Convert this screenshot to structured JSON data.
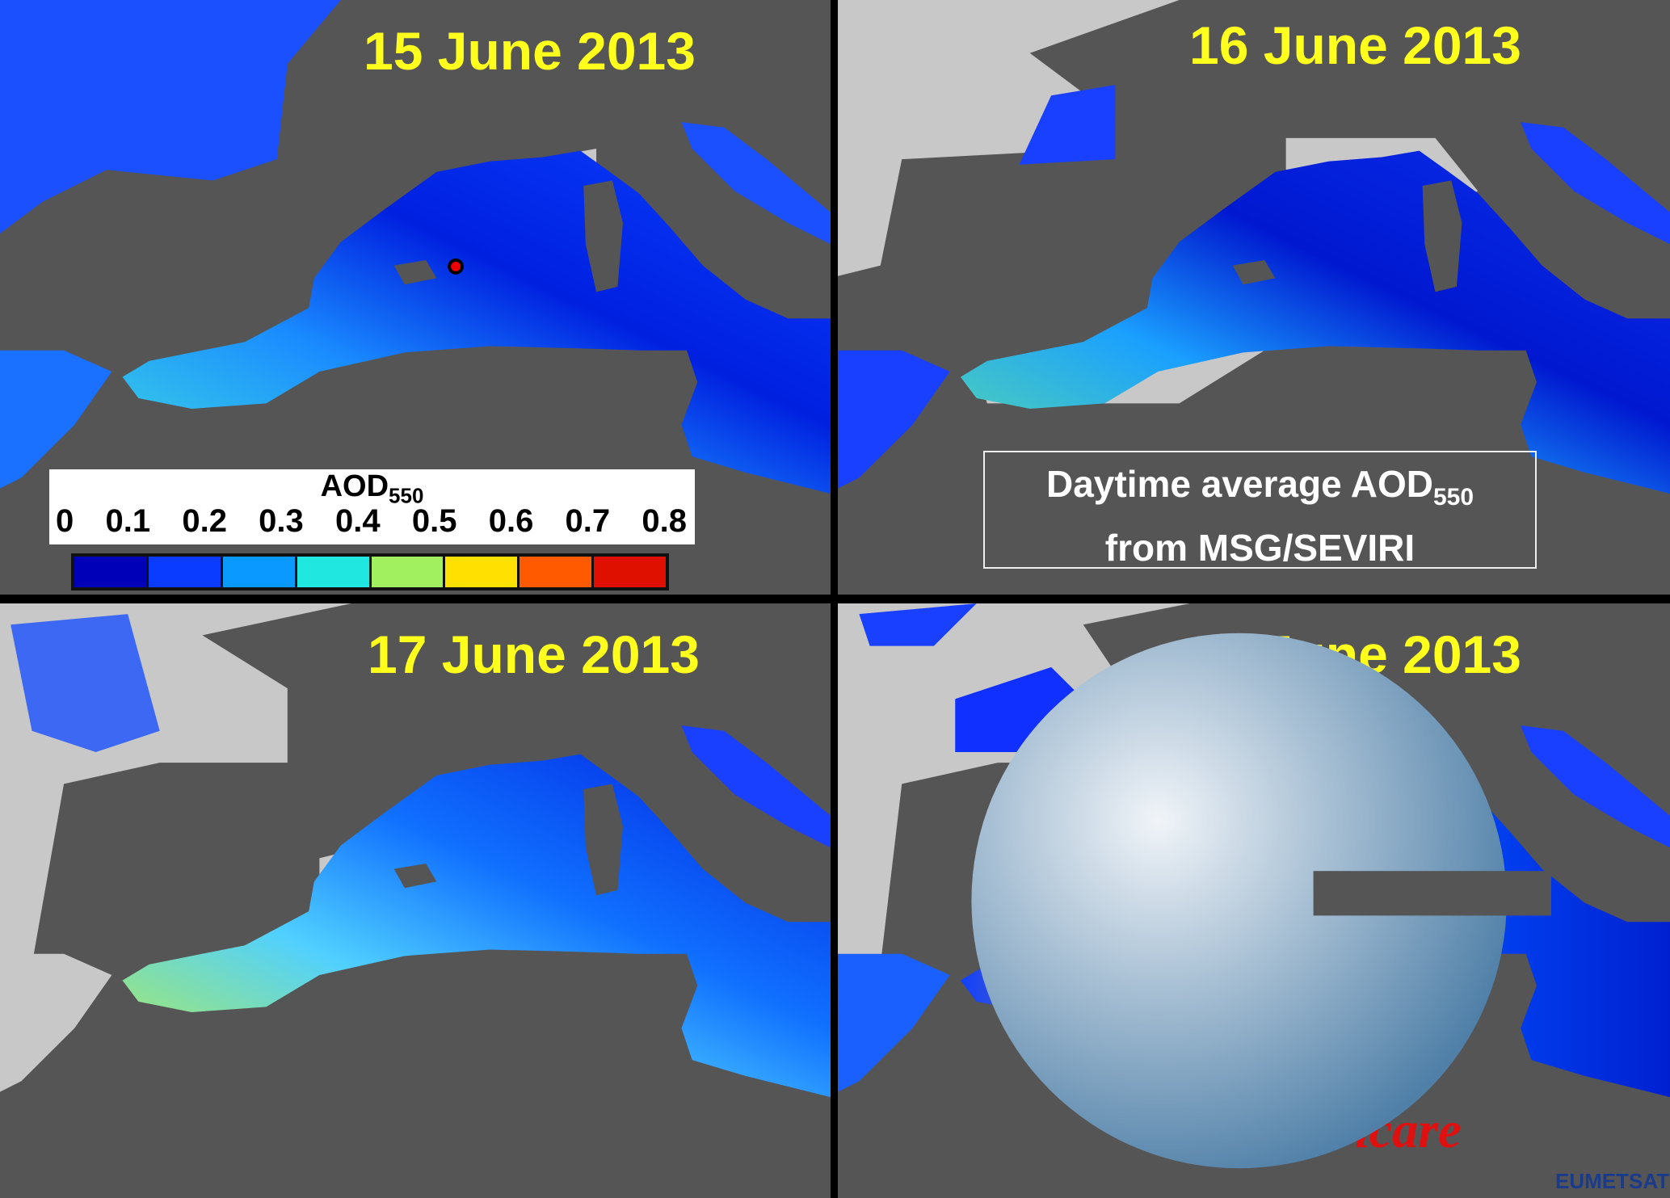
{
  "panels": [
    {
      "title": "15 June 2013"
    },
    {
      "title": "16 June 2013"
    },
    {
      "title": "17 June 2013"
    },
    {
      "title": "18 June 2013"
    }
  ],
  "legend": {
    "label": "AOD",
    "label_sub": "550",
    "ticks": [
      "0",
      "0.1",
      "0.2",
      "0.3",
      "0.4",
      "0.5",
      "0.6",
      "0.7",
      "0.8"
    ],
    "colors": [
      "#0000b8",
      "#0a3cff",
      "#0a9aff",
      "#20e8e0",
      "#a0f060",
      "#ffe000",
      "#ff5a00",
      "#e01000"
    ]
  },
  "note": {
    "line1": "Daytime average AOD",
    "line1_sub": "550",
    "line2": "from MSG/SEVIRI"
  },
  "logos": {
    "icare": "icare",
    "eumetsat": "EUMETSAT"
  },
  "colors": {
    "background": "#555555",
    "land_nodata": "#c8c8c8",
    "title": "#ffff1e"
  }
}
